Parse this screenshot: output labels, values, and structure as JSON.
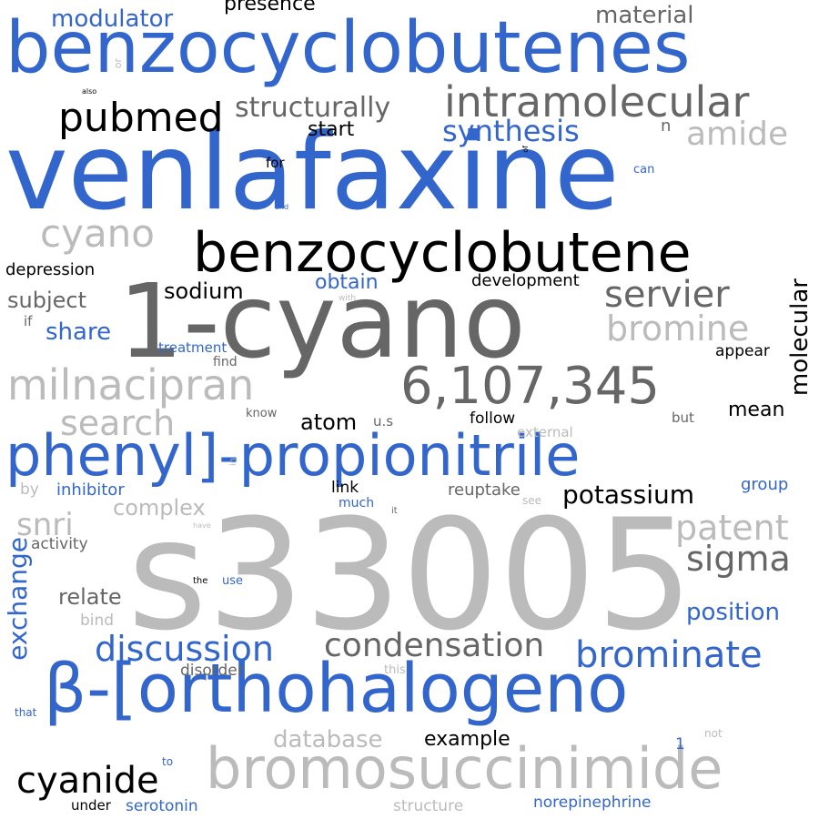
{
  "colors": {
    "blue": "#3366cc",
    "dark": "#666666",
    "light": "#bbbbbb",
    "black": "#000000"
  },
  "words": [
    {
      "text": "venlafaxine",
      "color": "blue"
    },
    {
      "text": "s33005",
      "color": "light"
    },
    {
      "text": "1-cyano",
      "color": "dark"
    },
    {
      "text": "benzocyclobutenes",
      "color": "blue"
    },
    {
      "text": "β-[orthohalogeno",
      "color": "blue"
    },
    {
      "text": "phenyl]-propionitrile",
      "color": "blue"
    },
    {
      "text": "benzocyclobutene",
      "color": "black"
    },
    {
      "text": "bromosuccinimide",
      "color": "light"
    },
    {
      "text": "6,107,345",
      "color": "dark"
    },
    {
      "text": "intramolecular",
      "color": "dark"
    },
    {
      "text": "milnacipran",
      "color": "light"
    },
    {
      "text": "pubmed",
      "color": "black"
    },
    {
      "text": "cyano",
      "color": "light"
    },
    {
      "text": "brominate",
      "color": "blue"
    },
    {
      "text": "cyanide",
      "color": "black"
    },
    {
      "text": "servier",
      "color": "dark"
    },
    {
      "text": "discussion",
      "color": "blue"
    },
    {
      "text": "condensation",
      "color": "dark"
    },
    {
      "text": "patent",
      "color": "light"
    },
    {
      "text": "search",
      "color": "light"
    },
    {
      "text": "bromine",
      "color": "light"
    },
    {
      "text": "sigma",
      "color": "dark"
    },
    {
      "text": "amide",
      "color": "light"
    },
    {
      "text": "synthesis",
      "color": "blue"
    },
    {
      "text": "structurally",
      "color": "dark"
    },
    {
      "text": "potassium",
      "color": "black"
    },
    {
      "text": "exchange",
      "color": "blue"
    },
    {
      "text": "snri",
      "color": "light"
    },
    {
      "text": "molecular",
      "color": "black"
    },
    {
      "text": "modulator",
      "color": "blue"
    },
    {
      "text": "position",
      "color": "blue"
    },
    {
      "text": "database",
      "color": "light"
    },
    {
      "text": "material",
      "color": "dark"
    },
    {
      "text": "complex",
      "color": "light"
    },
    {
      "text": "atom",
      "color": "black"
    },
    {
      "text": "sodium",
      "color": "black"
    },
    {
      "text": "share",
      "color": "blue"
    },
    {
      "text": "subject",
      "color": "dark"
    },
    {
      "text": "relate",
      "color": "dark"
    },
    {
      "text": "start",
      "color": "black"
    },
    {
      "text": "presence",
      "color": "black"
    },
    {
      "text": "obtain",
      "color": "blue"
    },
    {
      "text": "example",
      "color": "black"
    },
    {
      "text": "mean",
      "color": "black"
    },
    {
      "text": "depression",
      "color": "black"
    },
    {
      "text": "development",
      "color": "black"
    },
    {
      "text": "inhibitor",
      "color": "blue"
    },
    {
      "text": "reuptake",
      "color": "dark"
    },
    {
      "text": "group",
      "color": "blue"
    },
    {
      "text": "serotonin",
      "color": "blue"
    },
    {
      "text": "norepinephrine",
      "color": "blue"
    },
    {
      "text": "structure",
      "color": "light"
    },
    {
      "text": "activity",
      "color": "dark"
    },
    {
      "text": "disorder",
      "color": "dark"
    },
    {
      "text": "treatment",
      "color": "blue"
    },
    {
      "text": "appear",
      "color": "black"
    },
    {
      "text": "follow",
      "color": "black"
    },
    {
      "text": "external",
      "color": "light"
    },
    {
      "text": "link",
      "color": "black"
    },
    {
      "text": "bind",
      "color": "light"
    },
    {
      "text": "under",
      "color": "black"
    },
    {
      "text": "find",
      "color": "dark"
    },
    {
      "text": "know",
      "color": "dark"
    },
    {
      "text": "but",
      "color": "dark"
    },
    {
      "text": "u.s",
      "color": "dark"
    },
    {
      "text": "much",
      "color": "blue"
    },
    {
      "text": "by",
      "color": "light"
    },
    {
      "text": "for",
      "color": "black"
    },
    {
      "text": "n",
      "color": "dark"
    },
    {
      "text": "can",
      "color": "blue"
    },
    {
      "text": "if",
      "color": "dark"
    },
    {
      "text": "use",
      "color": "blue"
    },
    {
      "text": "1",
      "color": "blue"
    },
    {
      "text": "this",
      "color": "light"
    },
    {
      "text": "see",
      "color": "light"
    },
    {
      "text": "not",
      "color": "light"
    },
    {
      "text": "to",
      "color": "blue"
    },
    {
      "text": "that",
      "color": "blue"
    },
    {
      "text": "the",
      "color": "black"
    },
    {
      "text": "or",
      "color": "light"
    },
    {
      "text": "it",
      "color": "dark"
    },
    {
      "text": "also",
      "color": "black"
    },
    {
      "text": "and",
      "color": "blue"
    },
    {
      "text": "with",
      "color": "light"
    },
    {
      "text": "of",
      "color": "black"
    },
    {
      "text": "in",
      "color": "light"
    },
    {
      "text": "have",
      "color": "light"
    }
  ]
}
